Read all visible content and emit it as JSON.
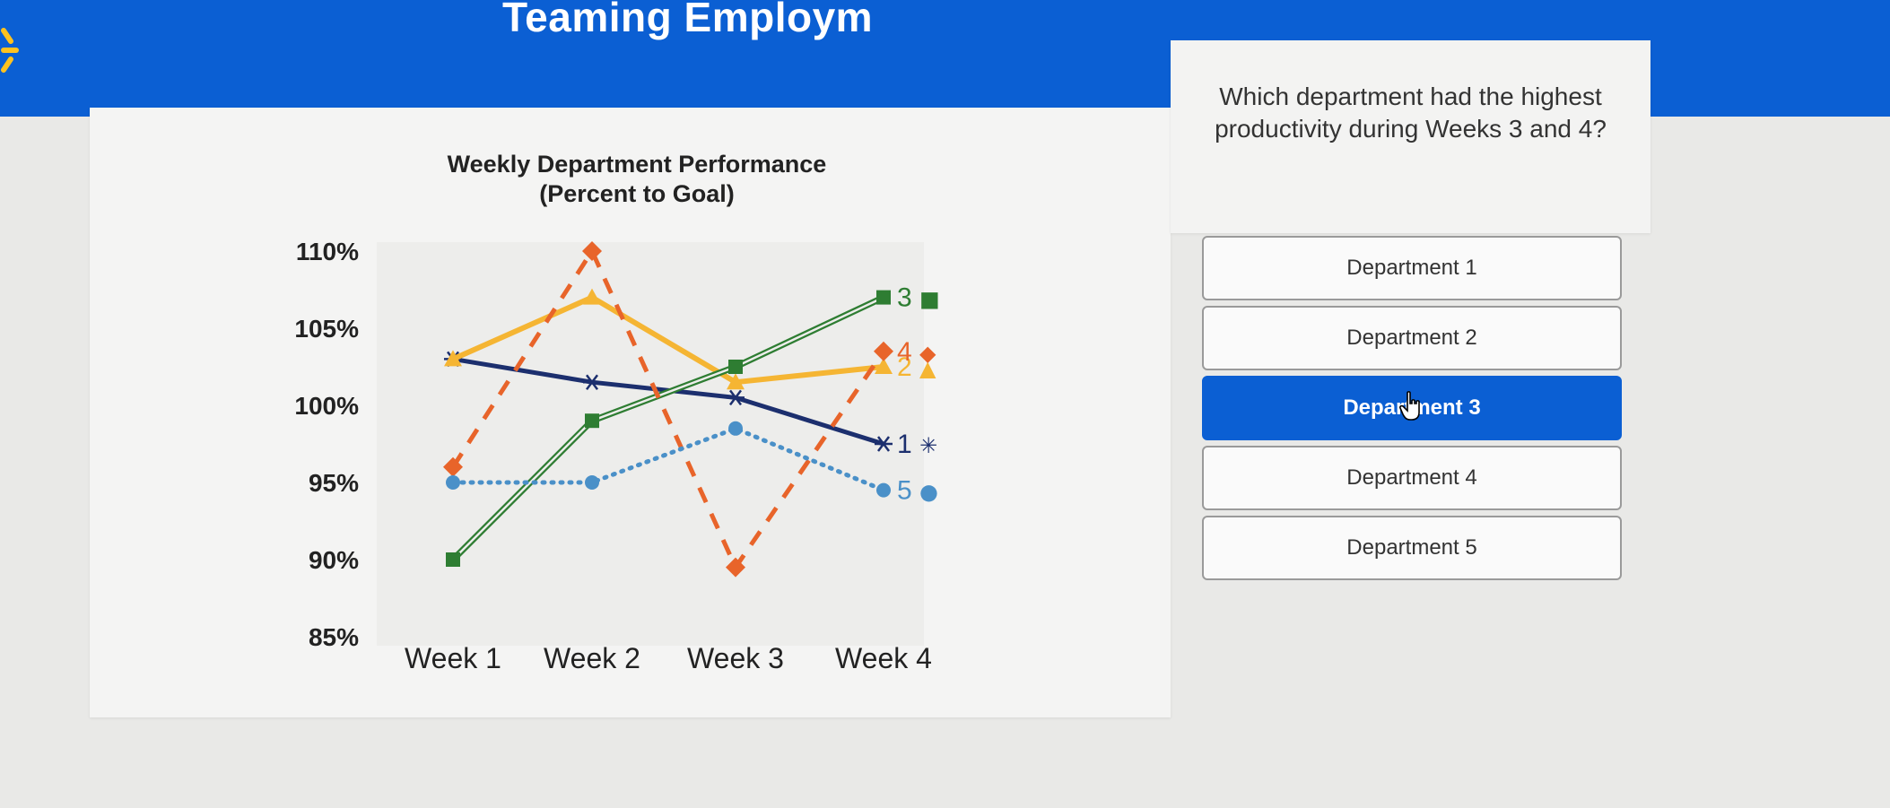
{
  "header": {
    "title": "Teaming Employm"
  },
  "question": {
    "text": "Which department had the highest productivity during Weeks 3 and 4?"
  },
  "options": [
    {
      "label": "Department 1",
      "selected": false
    },
    {
      "label": "Department 2",
      "selected": false
    },
    {
      "label": "Department 3",
      "selected": true
    },
    {
      "label": "Department 4",
      "selected": false
    },
    {
      "label": "Department 5",
      "selected": false
    }
  ],
  "icons": {
    "logo": "spark-logo-icon",
    "cursor": "hand-pointer-icon"
  },
  "colors": {
    "brand": "#0b5fd3",
    "selected_option": "#0b5fd3"
  },
  "chart_data": {
    "type": "line",
    "title": "Weekly Department Performance",
    "subtitle": "(Percent to Goal)",
    "categories": [
      "Week 1",
      "Week 2",
      "Week 3",
      "Week 4"
    ],
    "y_ticks": [
      "110%",
      "105%",
      "100%",
      "95%",
      "90%",
      "85%"
    ],
    "ylim": [
      85,
      110
    ],
    "series": [
      {
        "name": "1",
        "end_label": "1",
        "marker_glyph": "✳",
        "values": [
          103,
          101.5,
          100.5,
          97.5
        ],
        "color": "#1c2f6e",
        "style": "solid",
        "marker": "asterisk"
      },
      {
        "name": "2",
        "end_label": "2",
        "marker_glyph": "▲",
        "values": [
          103,
          107,
          101.5,
          102.5
        ],
        "color": "#f5b533",
        "style": "solid-thick",
        "marker": "triangle"
      },
      {
        "name": "3",
        "end_label": "3",
        "marker_glyph": "■",
        "values": [
          90,
          99,
          102.5,
          107
        ],
        "color": "#2e7d32",
        "style": "double",
        "marker": "square"
      },
      {
        "name": "4",
        "end_label": "4",
        "marker_glyph": "◆",
        "values": [
          96,
          110,
          89.5,
          103.5
        ],
        "color": "#e8642a",
        "style": "dashed",
        "marker": "diamond"
      },
      {
        "name": "5",
        "end_label": "5",
        "marker_glyph": "●",
        "values": [
          95,
          95,
          98.5,
          94.5
        ],
        "color": "#4a90c8",
        "style": "dotted",
        "marker": "circle"
      }
    ]
  }
}
